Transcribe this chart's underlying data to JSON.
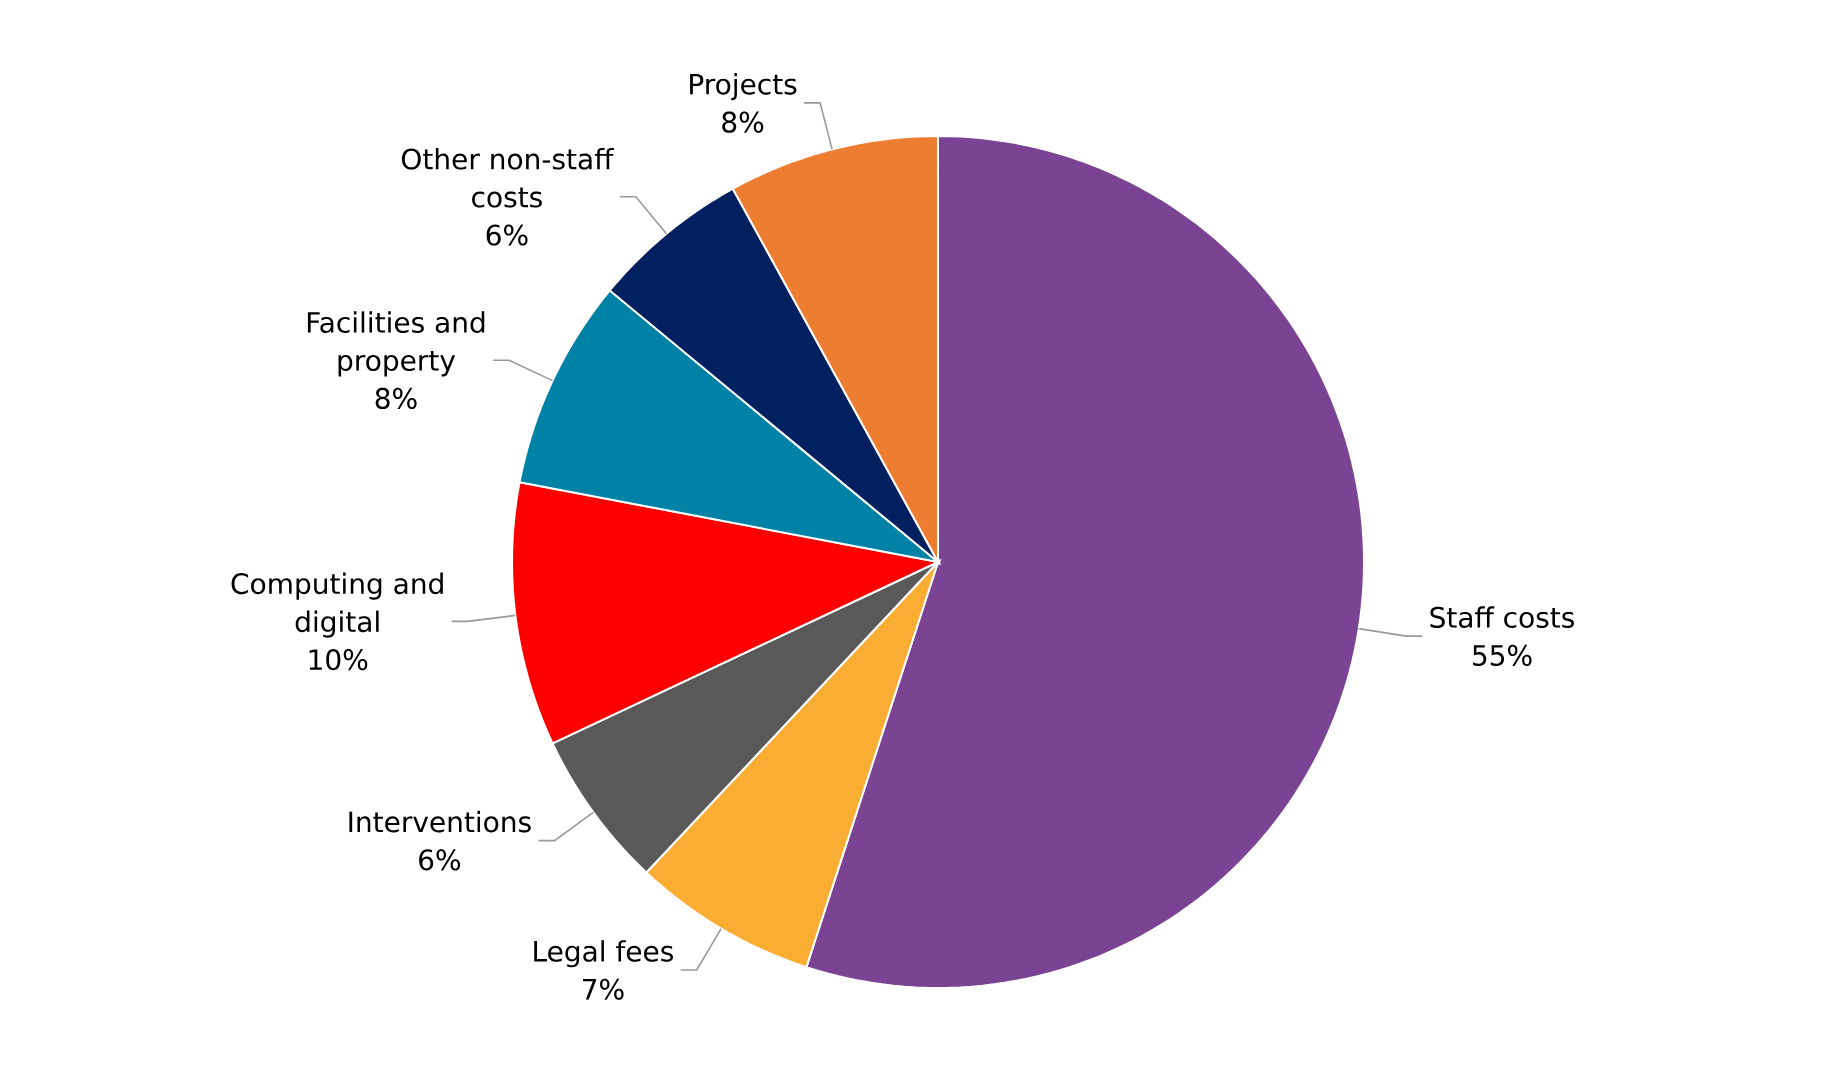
{
  "chart_data": {
    "type": "pie",
    "categories": [
      "Staff costs",
      "Legal fees",
      "Interventions",
      "Computing and digital",
      "Facilities and property",
      "Other non-staff costs",
      "Projects"
    ],
    "values": [
      55,
      7,
      6,
      10,
      8,
      6,
      8
    ],
    "value_labels": [
      "55%",
      "7%",
      "6%",
      "10%",
      "8%",
      "6%",
      "8%"
    ],
    "colors": [
      "#7b4394",
      "#f9ae33",
      "#595959",
      "#ff0000",
      "#0081a6",
      "#002060",
      "#ed7d31"
    ]
  }
}
